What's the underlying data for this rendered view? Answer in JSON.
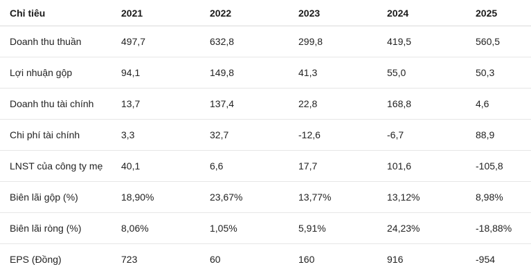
{
  "table": {
    "headers": [
      "Chỉ tiêu",
      "2021",
      "2022",
      "2023",
      "2024",
      "2025"
    ],
    "rows": [
      [
        "Doanh thu thuần",
        "497,7",
        "632,8",
        "299,8",
        "419,5",
        "560,5"
      ],
      [
        "Lợi nhuận gộp",
        "94,1",
        "149,8",
        "41,3",
        "55,0",
        "50,3"
      ],
      [
        "Doanh thu tài chính",
        "13,7",
        "137,4",
        "22,8",
        "168,8",
        "4,6"
      ],
      [
        "Chi phí tài chính",
        "3,3",
        "32,7",
        "-12,6",
        "-6,7",
        "88,9"
      ],
      [
        "LNST của công ty mẹ",
        "40,1",
        "6,6",
        "17,7",
        "101,6",
        "-105,8"
      ],
      [
        "Biên lãi gộp (%)",
        "18,90%",
        "23,67%",
        "13,77%",
        "13,12%",
        "8,98%"
      ],
      [
        "Biên lãi ròng (%)",
        "8,06%",
        "1,05%",
        "5,91%",
        "24,23%",
        "-18,88%"
      ],
      [
        "EPS (Đồng)",
        "723",
        "60",
        "160",
        "916",
        "-954"
      ]
    ]
  }
}
